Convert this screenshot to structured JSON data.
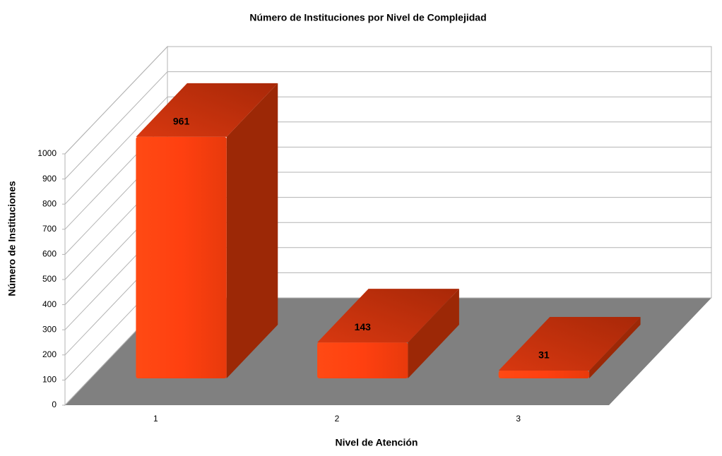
{
  "chart_data": {
    "type": "bar3d",
    "title": "Número de Instituciones por Nivel de Complejidad",
    "xlabel": "Nivel de Atención",
    "ylabel": "Número de Instituciones",
    "categories": [
      "1",
      "2",
      "3"
    ],
    "values": [
      961,
      143,
      31
    ],
    "color": "#ff4010",
    "ylim": [
      0,
      1000
    ],
    "yticks": [
      0,
      100,
      200,
      300,
      400,
      500,
      600,
      700,
      800,
      900,
      1000
    ],
    "grid": true
  }
}
